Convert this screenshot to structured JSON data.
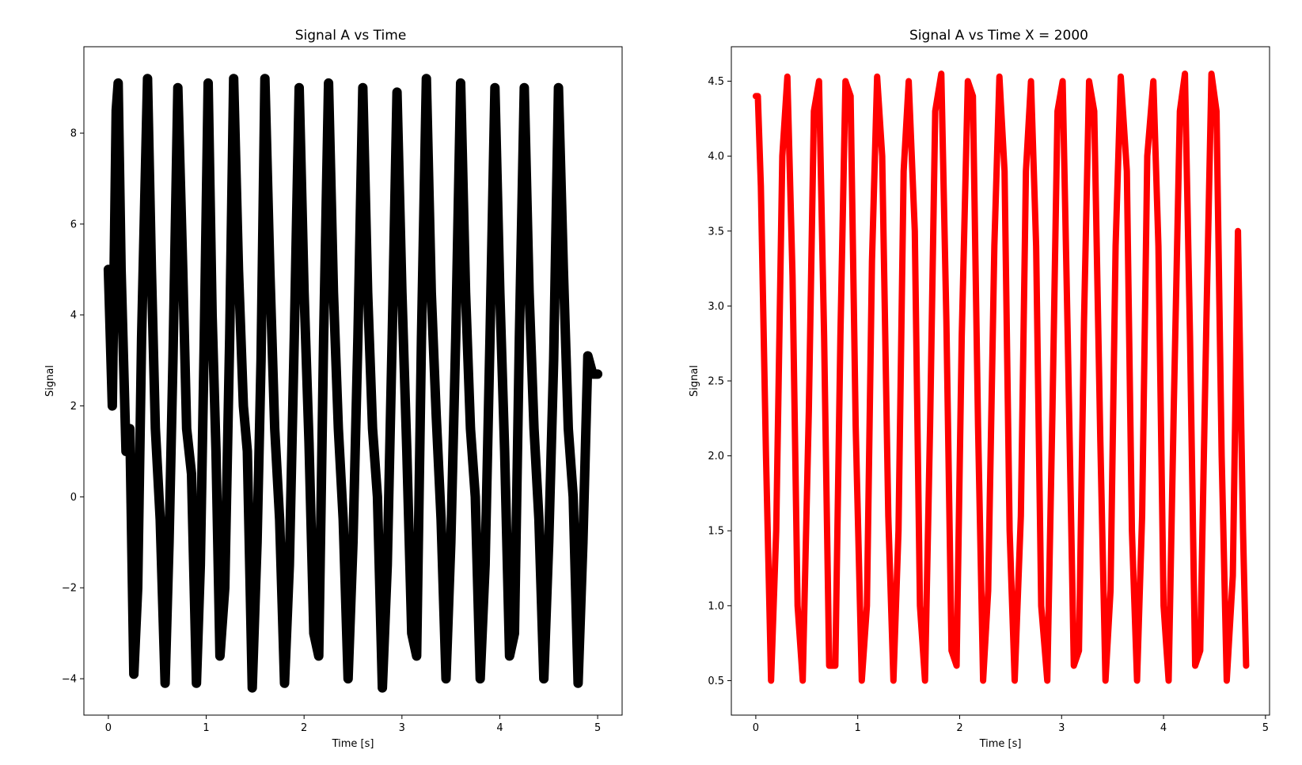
{
  "chart_data": [
    {
      "type": "scatter",
      "title": "Signal A vs Time",
      "xlabel": "Time [s]",
      "ylabel": "Signal",
      "xlim": [
        -0.25,
        5.25
      ],
      "ylim": [
        -4.8,
        9.9
      ],
      "xticks": [
        0,
        1,
        2,
        3,
        4,
        5
      ],
      "xtick_labels": [
        "0",
        "1",
        "2",
        "3",
        "4",
        "5"
      ],
      "yticks": [
        -4,
        -2,
        0,
        2,
        4,
        6,
        8
      ],
      "ytick_labels": [
        "−4",
        "−2",
        "0",
        "2",
        "4",
        "6",
        "8"
      ],
      "grid": false,
      "legend": "none",
      "marker": "star",
      "color": "#000000",
      "series": [
        {
          "x": [
            0.0,
            0.04,
            0.08,
            0.1,
            0.13,
            0.18,
            0.22,
            0.26,
            0.3,
            0.34,
            0.4,
            0.44,
            0.48,
            0.53,
            0.58,
            0.62,
            0.66,
            0.71,
            0.76,
            0.8,
            0.85,
            0.9,
            0.94,
            0.98,
            1.02,
            1.06,
            1.1,
            1.14,
            1.19,
            1.24,
            1.28,
            1.33,
            1.38,
            1.42,
            1.47,
            1.52,
            1.56,
            1.6,
            1.65,
            1.7,
            1.75,
            1.8,
            1.85,
            1.9,
            1.95,
            2.0,
            2.05,
            2.1,
            2.15,
            2.2,
            2.25,
            2.3,
            2.35,
            2.4,
            2.45,
            2.5,
            2.55,
            2.6,
            2.65,
            2.7,
            2.75,
            2.8,
            2.85,
            2.9,
            2.95,
            3.0,
            3.05,
            3.1,
            3.15,
            3.2,
            3.25,
            3.3,
            3.35,
            3.4,
            3.45,
            3.5,
            3.55,
            3.6,
            3.65,
            3.7,
            3.75,
            3.8,
            3.85,
            3.9,
            3.95,
            4.0,
            4.05,
            4.1,
            4.15,
            4.2,
            4.25,
            4.3,
            4.35,
            4.4,
            4.45,
            4.5,
            4.55,
            4.6,
            4.65,
            4.7,
            4.75,
            4.8,
            4.85,
            4.9,
            4.95,
            5.0
          ],
          "y": [
            5.0,
            2.0,
            8.5,
            9.1,
            5.0,
            1.0,
            1.5,
            -3.9,
            -2.0,
            3.5,
            9.2,
            5.0,
            1.5,
            -0.5,
            -4.1,
            -1.0,
            3.0,
            9.0,
            5.0,
            1.5,
            0.5,
            -4.1,
            -1.5,
            3.5,
            9.1,
            4.0,
            1.0,
            -3.5,
            -2.0,
            3.5,
            9.2,
            5.0,
            2.0,
            1.0,
            -4.2,
            -1.0,
            3.0,
            9.2,
            5.0,
            1.5,
            -0.5,
            -4.1,
            -1.5,
            3.5,
            9.0,
            4.5,
            1.2,
            -3.0,
            -3.5,
            3.5,
            9.1,
            4.5,
            1.5,
            -0.5,
            -4.0,
            -1.0,
            3.5,
            9.0,
            4.5,
            1.5,
            0.0,
            -4.2,
            -1.5,
            3.5,
            8.9,
            4.5,
            1.0,
            -3.0,
            -3.5,
            3.5,
            9.2,
            4.5,
            1.8,
            -0.5,
            -4.0,
            -1.0,
            3.5,
            9.1,
            4.5,
            1.5,
            0.0,
            -4.0,
            -1.5,
            3.5,
            9.0,
            4.5,
            1.0,
            -3.5,
            -3.0,
            3.5,
            9.0,
            4.5,
            1.5,
            -0.5,
            -4.0,
            -1.0,
            3.0,
            9.0,
            5.0,
            1.5,
            0.0,
            -4.1,
            -1.0,
            3.1,
            2.7,
            2.7
          ]
        }
      ]
    },
    {
      "type": "line",
      "title": "Signal A vs Time X = 2000",
      "xlabel": "Time [s]",
      "ylabel": "Signal",
      "xlim": [
        -0.24,
        5.04
      ],
      "ylim": [
        0.27,
        4.73
      ],
      "xticks": [
        0,
        1,
        2,
        3,
        4,
        5
      ],
      "xtick_labels": [
        "0",
        "1",
        "2",
        "3",
        "4",
        "5"
      ],
      "yticks": [
        0.5,
        1.0,
        1.5,
        2.0,
        2.5,
        3.0,
        3.5,
        4.0,
        4.5
      ],
      "ytick_labels": [
        "0.5",
        "1.0",
        "1.5",
        "2.0",
        "2.5",
        "3.0",
        "3.5",
        "4.0",
        "4.5"
      ],
      "grid": false,
      "legend": "none",
      "color": "#ff0000",
      "series": [
        {
          "x": [
            0.0,
            0.02,
            0.05,
            0.1,
            0.15,
            0.2,
            0.26,
            0.31,
            0.36,
            0.41,
            0.46,
            0.52,
            0.57,
            0.62,
            0.67,
            0.72,
            0.78,
            0.83,
            0.88,
            0.93,
            0.98,
            1.04,
            1.09,
            1.14,
            1.19,
            1.24,
            1.3,
            1.35,
            1.4,
            1.45,
            1.5,
            1.56,
            1.61,
            1.66,
            1.71,
            1.76,
            1.82,
            1.87,
            1.92,
            1.97,
            2.02,
            2.08,
            2.13,
            2.18,
            2.23,
            2.28,
            2.34,
            2.39,
            2.44,
            2.49,
            2.54,
            2.6,
            2.65,
            2.7,
            2.75,
            2.8,
            2.86,
            2.91,
            2.96,
            3.01,
            3.06,
            3.12,
            3.17,
            3.22,
            3.27,
            3.32,
            3.38,
            3.43,
            3.48,
            3.53,
            3.58,
            3.64,
            3.69,
            3.74,
            3.79,
            3.84,
            3.9,
            3.95,
            4.0,
            4.05,
            4.1,
            4.16,
            4.21,
            4.26,
            4.31,
            4.36,
            4.42,
            4.47,
            4.52,
            4.57,
            4.62,
            4.68,
            4.73,
            4.78,
            4.81
          ],
          "y": [
            4.4,
            4.4,
            3.8,
            2.0,
            0.5,
            1.5,
            4.0,
            4.53,
            3.2,
            1.0,
            0.5,
            2.3,
            4.3,
            4.5,
            2.8,
            0.6,
            0.6,
            2.8,
            4.5,
            4.4,
            2.2,
            0.5,
            1.0,
            3.3,
            4.53,
            4.0,
            1.6,
            0.5,
            1.5,
            3.9,
            4.5,
            3.5,
            1.0,
            0.5,
            2.2,
            4.3,
            4.55,
            2.9,
            0.7,
            0.6,
            2.8,
            4.5,
            4.4,
            2.2,
            0.5,
            1.1,
            3.4,
            4.53,
            3.9,
            1.5,
            0.5,
            1.6,
            3.9,
            4.5,
            3.4,
            1.0,
            0.5,
            2.3,
            4.3,
            4.5,
            2.8,
            0.6,
            0.7,
            2.9,
            4.5,
            4.3,
            2.1,
            0.5,
            1.1,
            3.4,
            4.53,
            3.9,
            1.5,
            0.5,
            1.6,
            4.0,
            4.5,
            3.4,
            1.0,
            0.5,
            2.3,
            4.3,
            4.55,
            2.8,
            0.6,
            0.7,
            2.9,
            4.55,
            4.3,
            2.0,
            0.5,
            1.2,
            3.5,
            1.5,
            0.6
          ]
        }
      ]
    }
  ]
}
